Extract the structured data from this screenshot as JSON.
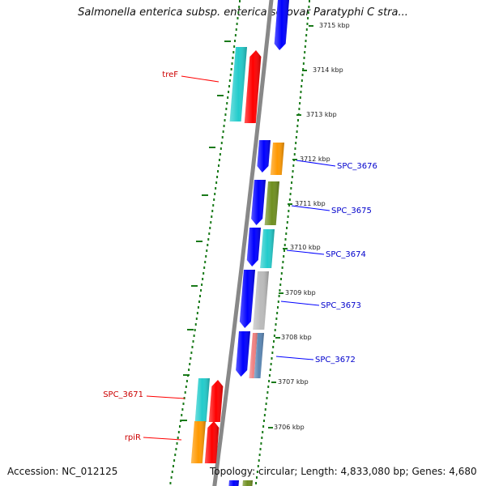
{
  "title": "Salmonella enterica subsp. enterica serovar Paratyphi C stra...",
  "accession": "Accession: NC_012125",
  "topology": "Topology: circular; Length: 4,833,080 bp; Genes: 4,680",
  "colors": {
    "red": "#ff0000",
    "blue": "#0000ff",
    "cyan": "#22cccc",
    "orange": "#ff9900",
    "olive": "#6f8f1f",
    "grey": "#bbbbbb",
    "pink": "#f08080",
    "steelblue": "#5a86b4",
    "backbone": "#888888",
    "tick": "#1a7a1a",
    "red_label": "#cc0000",
    "blue_label": "#0000cc"
  },
  "kbp_labels": [
    "3715 kbp",
    "3714 kbp",
    "3713 kbp",
    "3712 kbp",
    "3711 kbp",
    "3710 kbp",
    "3709 kbp",
    "3708 kbp",
    "3707 kbp",
    "3706 kbp"
  ],
  "gene_labels_left": [
    {
      "text": "treF",
      "color": "red"
    },
    {
      "text": "SPC_3671",
      "color": "red"
    },
    {
      "text": "rpiR",
      "color": "red"
    }
  ],
  "gene_labels_right": [
    {
      "text": "SPC_3676",
      "color": "blue"
    },
    {
      "text": "SPC_3675",
      "color": "blue"
    },
    {
      "text": "SPC_3674",
      "color": "blue"
    },
    {
      "text": "SPC_3673",
      "color": "blue"
    },
    {
      "text": "SPC_3672",
      "color": "blue"
    }
  ]
}
